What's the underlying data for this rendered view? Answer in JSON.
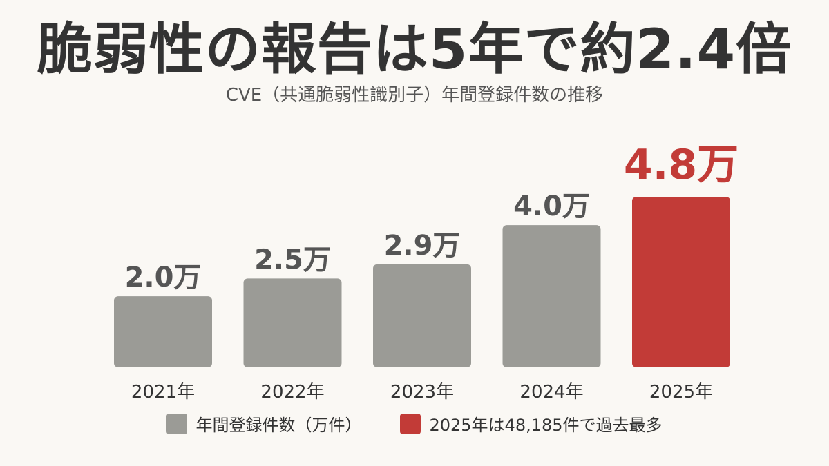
{
  "title": "脆弱性の報告は5年で約2.4倍",
  "subtitle": "CVE（共通脆弱性識別子）年間登録件数の推移",
  "colors": {
    "bar": "#9b9b96",
    "highlight": "#c23b37",
    "bar_label": "#555555",
    "axis_label": "#333333"
  },
  "legend": {
    "items": [
      {
        "label": "年間登録件数（万件）",
        "color": "#9b9b96"
      },
      {
        "label": "2025年は48,185件で過去最多",
        "color": "#c23b37"
      }
    ]
  },
  "chart_data": {
    "type": "bar",
    "categories": [
      "2021年",
      "2022年",
      "2023年",
      "2024年",
      "2025年"
    ],
    "values": [
      2.0,
      2.5,
      2.9,
      4.0,
      4.8
    ],
    "data_labels": [
      "2.0万",
      "2.5万",
      "2.9万",
      "4.0万",
      "4.8万"
    ],
    "highlight_index": 4,
    "title": "脆弱性の報告は5年で約2.4倍",
    "subtitle": "CVE（共通脆弱性識別子）年間登録件数の推移",
    "xlabel": "",
    "ylabel": "",
    "ylim": [
      0,
      4.8
    ],
    "grid": false,
    "legend_position": "bottom"
  }
}
